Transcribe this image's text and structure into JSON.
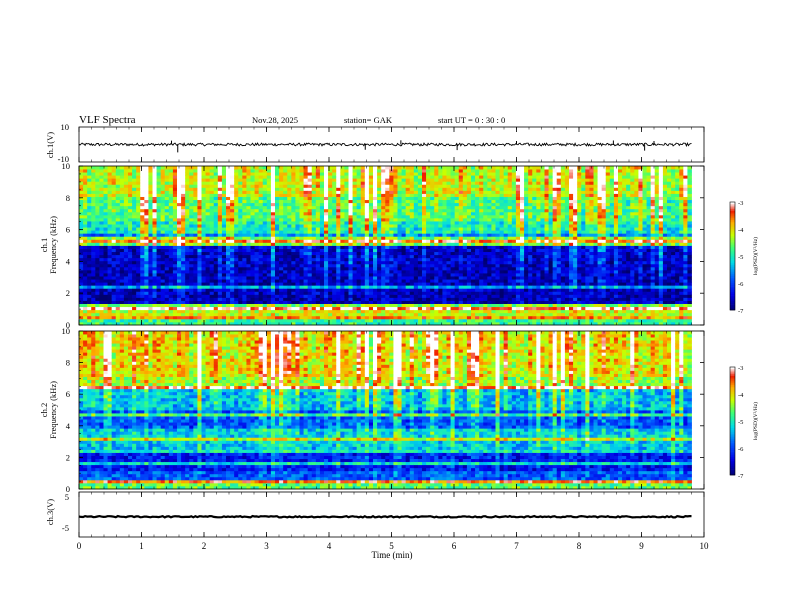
{
  "header": {
    "title": "VLF  Spectra",
    "date": "Nov.28, 2025",
    "station": "station= GAK",
    "start": "start  UT  =   0  : 30 : 0"
  },
  "chart_data": [
    {
      "type": "line",
      "name": "waveform-ch1",
      "ylabel": "ch.1(V)",
      "ylim": [
        -10,
        10
      ],
      "yticks": [
        "10",
        "-10"
      ],
      "xlim": [
        0,
        10
      ],
      "baseline_value": 0,
      "spikes": [
        {
          "x": 1.58,
          "y": -4.5
        },
        {
          "x": 1.48,
          "y": 2.2
        },
        {
          "x": 4.58,
          "y": -3.0
        },
        {
          "x": 5.15,
          "y": 2.4
        },
        {
          "x": 6.05,
          "y": -3.2
        },
        {
          "x": 7.0,
          "y": 2.0
        },
        {
          "x": 8.55,
          "y": 2.3
        },
        {
          "x": 9.05,
          "y": -3.5
        },
        {
          "x": 9.2,
          "y": 2.0
        }
      ]
    },
    {
      "type": "heatmap",
      "name": "spectrogram-ch1",
      "ylabel": "ch.1\nFrequency (kHz)",
      "ylim": [
        0,
        10
      ],
      "yticks": [
        "0",
        "2",
        "4",
        "6",
        "8",
        "10"
      ],
      "xlim": [
        0,
        10
      ],
      "data_x_end": 9.8,
      "colorbar": {
        "label": "log(PSD)(V²/Hz)",
        "ticks": [
          "-3",
          "-4",
          "-5",
          "-6",
          "-7"
        ],
        "range": [
          -7,
          -3
        ]
      },
      "bands_khz": [
        {
          "from": 0.0,
          "to": 0.5,
          "level": -4.8
        },
        {
          "from": 0.5,
          "to": 1.0,
          "level": -4.2
        },
        {
          "from": 1.0,
          "to": 1.3,
          "level": -5.6
        },
        {
          "from": 1.3,
          "to": 5.0,
          "level": -6.7
        },
        {
          "from": 5.0,
          "to": 5.6,
          "level": -5.8
        },
        {
          "from": 5.6,
          "to": 6.5,
          "level": -5.2
        },
        {
          "from": 6.5,
          "to": 8.0,
          "level": -4.9
        },
        {
          "from": 8.0,
          "to": 10.0,
          "level": -4.5
        }
      ],
      "line_khz": [
        0.4,
        0.9,
        1.2,
        2.3,
        5.1,
        5.3
      ]
    },
    {
      "type": "heatmap",
      "name": "spectrogram-ch2",
      "ylabel": "ch.2\nFrequency (kHz)",
      "ylim": [
        0,
        10
      ],
      "yticks": [
        "0",
        "2",
        "4",
        "6",
        "8",
        "10"
      ],
      "xlim": [
        0,
        10
      ],
      "data_x_end": 9.8,
      "colorbar": {
        "label": "log(PSD)(V²/Hz)",
        "ticks": [
          "-3",
          "-4",
          "-5",
          "-6",
          "-7"
        ],
        "range": [
          -7,
          -3
        ]
      },
      "bands_khz": [
        {
          "from": 0.0,
          "to": 0.5,
          "level": -4.6
        },
        {
          "from": 0.5,
          "to": 1.0,
          "level": -5.9
        },
        {
          "from": 1.0,
          "to": 2.5,
          "level": -6.3
        },
        {
          "from": 2.5,
          "to": 3.8,
          "level": -5.4
        },
        {
          "from": 3.8,
          "to": 5.0,
          "level": -6.0
        },
        {
          "from": 5.0,
          "to": 6.2,
          "level": -5.5
        },
        {
          "from": 6.2,
          "to": 7.0,
          "level": -4.6
        },
        {
          "from": 7.0,
          "to": 10.0,
          "level": -4.3
        }
      ],
      "line_khz": [
        0.4,
        1.5,
        2.3,
        3.0,
        4.6,
        6.3
      ]
    },
    {
      "type": "line",
      "name": "waveform-ch3",
      "ylabel": "ch.3(V)",
      "ylim": [
        -5,
        5
      ],
      "yticks": [
        "5",
        "-5"
      ],
      "xlim": [
        0,
        10
      ],
      "baseline_value": -0.5
    }
  ],
  "x_axis": {
    "label": "Time  (min)",
    "ticks": [
      "0",
      "1",
      "2",
      "3",
      "4",
      "5",
      "6",
      "7",
      "8",
      "9",
      "10"
    ]
  }
}
